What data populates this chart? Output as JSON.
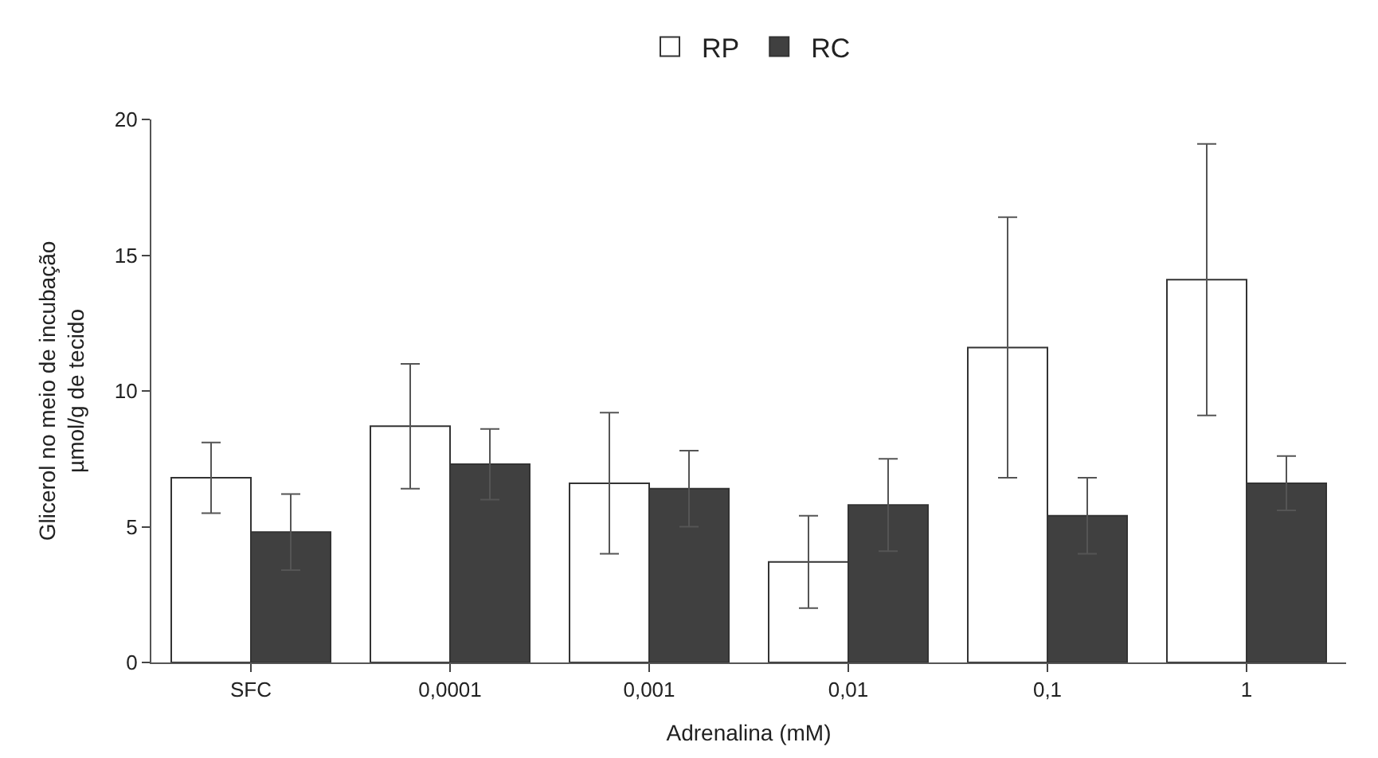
{
  "chart_data": {
    "type": "bar",
    "xlabel": "Adrenalina (mM)",
    "ylabel": "Glicerol no meio de incubação\nµmol/g de tecido",
    "categories": [
      "SFC",
      "0,0001",
      "0,001",
      "0,01",
      "0,1",
      "1"
    ],
    "series": [
      {
        "name": "RP",
        "color": "#ffffff",
        "values": [
          6.8,
          8.7,
          6.6,
          3.7,
          11.6,
          14.1
        ],
        "errors": [
          1.3,
          2.3,
          2.6,
          1.7,
          4.8,
          5.0
        ]
      },
      {
        "name": "RC",
        "color": "#404040",
        "values": [
          4.8,
          7.3,
          6.4,
          5.8,
          5.4,
          6.6
        ],
        "errors": [
          1.4,
          1.3,
          1.4,
          1.7,
          1.4,
          1.0
        ]
      }
    ],
    "ylim": [
      0,
      20
    ],
    "yticks": [
      0,
      5,
      10,
      15,
      20
    ],
    "legend": "top"
  }
}
